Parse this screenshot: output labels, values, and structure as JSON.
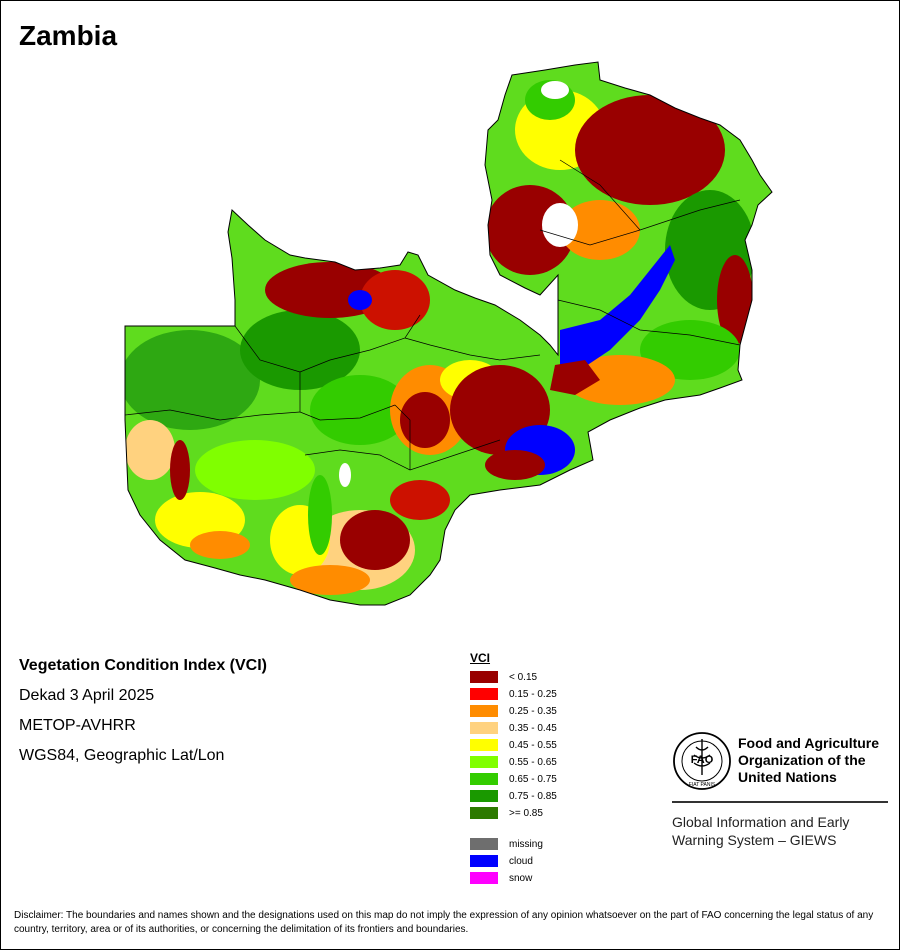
{
  "map_title": "Zambia",
  "info": {
    "index_name": "Vegetation Condition Index (VCI)",
    "period": "Dekad 3 April 2025",
    "sensor": "METOP-AVHRR",
    "projection": "WGS84, Geographic Lat/Lon"
  },
  "legend": {
    "title": "VCI",
    "classes": [
      {
        "label": "< 0.15",
        "color": "#990000"
      },
      {
        "label": "0.15 - 0.25",
        "color": "#ff0000"
      },
      {
        "label": "0.25 - 0.35",
        "color": "#ff8c00"
      },
      {
        "label": "0.35 - 0.45",
        "color": "#ffd27f"
      },
      {
        "label": "0.45 - 0.55",
        "color": "#ffff00"
      },
      {
        "label": "0.55 - 0.65",
        "color": "#80ff00"
      },
      {
        "label": "0.65 - 0.75",
        "color": "#33cc00"
      },
      {
        "label": "0.75 - 0.85",
        "color": "#1a9900"
      },
      {
        "label": ">= 0.85",
        "color": "#2d7a00"
      }
    ],
    "other": [
      {
        "label": "missing",
        "color": "#6e6e6e"
      },
      {
        "label": "cloud",
        "color": "#0000ff"
      },
      {
        "label": "snow",
        "color": "#ff00ff"
      }
    ]
  },
  "org": {
    "logo_letters": "FAO",
    "logo_motto": "FIAT PANIS",
    "name_line1": "Food and Agriculture",
    "name_line2": "Organization of the",
    "name_line3": "United Nations",
    "system_line1": "Global Information and Early",
    "system_line2": "Warning System – GIEWS"
  },
  "disclaimer": "Disclaimer: The boundaries and names shown and the designations used on this map do not imply the expression of any opinion whatsoever on the part of FAO concerning the legal status of any country, territory, area or of its authorities, or concerning the delimitation of its frontiers and boundaries."
}
